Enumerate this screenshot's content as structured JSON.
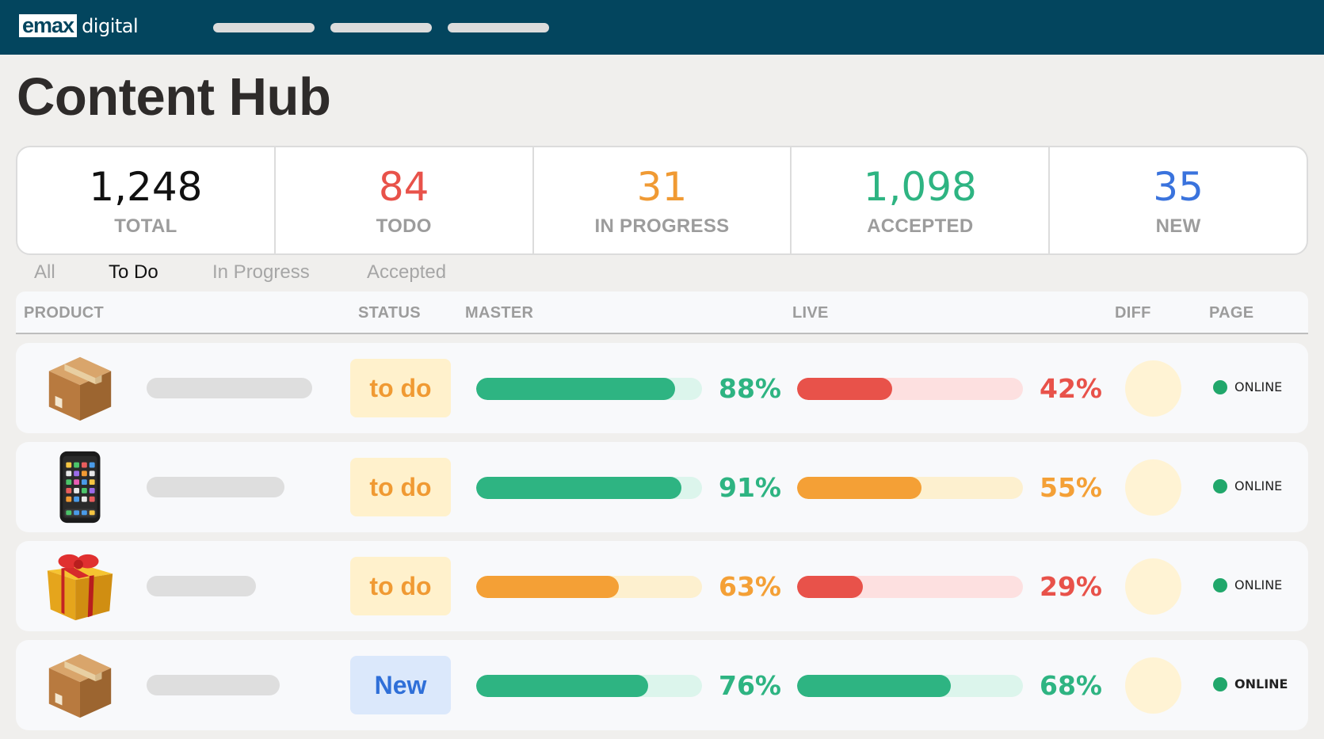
{
  "header": {
    "logo_brand": "emax",
    "logo_suffix": "digital"
  },
  "page": {
    "title": "Content Hub"
  },
  "stats": [
    {
      "value": "1,248",
      "label": "TOTAL",
      "color": "#111111"
    },
    {
      "value": "84",
      "label": "TODO",
      "color": "#e8524a"
    },
    {
      "value": "31",
      "label": "IN PROGRESS",
      "color": "#f09a33"
    },
    {
      "value": "1,098",
      "label": "ACCEPTED",
      "color": "#2eb482"
    },
    {
      "value": "35",
      "label": "NEW",
      "color": "#3a73dd"
    }
  ],
  "tabs": [
    {
      "label": "All",
      "active": false
    },
    {
      "label": "To Do",
      "active": true
    },
    {
      "label": "In Progress",
      "active": false
    },
    {
      "label": "Accepted",
      "active": false
    }
  ],
  "table": {
    "columns": [
      "PRODUCT",
      "STATUS",
      "MASTER",
      "LIVE",
      "DIFF",
      "PAGE"
    ],
    "rows": [
      {
        "product_icon": "package-icon",
        "status": "to do",
        "status_kind": "todo",
        "master": "88%",
        "master_value": 0.88,
        "master_color": "green",
        "live": "42%",
        "live_value": 0.42,
        "live_color": "red",
        "page": "ONLINE"
      },
      {
        "product_icon": "smartphone-icon",
        "status": "to do",
        "status_kind": "todo",
        "master": "91%",
        "master_value": 0.91,
        "master_color": "green",
        "live": "55%",
        "live_value": 0.55,
        "live_color": "orange",
        "page": "ONLINE"
      },
      {
        "product_icon": "gift-icon",
        "status": "to do",
        "status_kind": "todo",
        "master": "63%",
        "master_value": 0.63,
        "master_color": "orange",
        "live": "29%",
        "live_value": 0.29,
        "live_color": "red",
        "page": "ONLINE"
      },
      {
        "product_icon": "package-icon",
        "status": "New",
        "status_kind": "new",
        "master": "76%",
        "master_value": 0.76,
        "master_color": "green",
        "live": "68%",
        "live_value": 0.68,
        "live_color": "green",
        "page": "ONLINE"
      }
    ]
  },
  "colors": {
    "header_bg": "#03455e",
    "green": "#2eb482",
    "green_track": "#dcf5ec",
    "orange": "#f4a036",
    "orange_track": "#fdf0cf",
    "red": "#e8524a",
    "red_track": "#fde0e0",
    "todo_chip_bg": "#fff1cc",
    "todo_chip_text": "#f09a33",
    "new_chip_bg": "#dbe8fb",
    "new_chip_text": "#2f6fd8"
  }
}
